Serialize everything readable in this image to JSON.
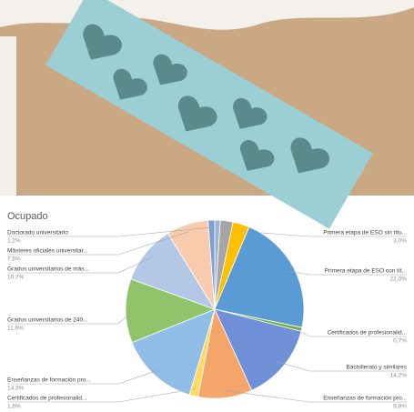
{
  "chart_data": {
    "type": "pie",
    "title": "Ocupado",
    "categories": [
      null,
      null,
      "Primera etapa de ESO sin títu...",
      "Primera etapa de ESO con tít...",
      "Certificados de profesionalid...",
      "Bachillerato y similares",
      "Enseñanzas de formación pro...",
      "Certificados de profesionalid...",
      "Enseñanzas de formación pro...",
      "Grados universitarios de 240...",
      "Grados universitarios de  más...",
      "Másteres oficiales universitar...",
      "Doctorado universitario"
    ],
    "values": [
      1.0,
      2.3,
      3.0,
      22.0,
      0.7,
      14.2,
      9.8,
      1.6,
      14.3,
      11.6,
      10.7,
      7.6,
      1.2
    ],
    "value_labels": [
      null,
      null,
      "3,0%",
      "22,0%",
      "0,7%",
      "14,2%",
      "9,8%",
      "1,6%",
      "14,3%",
      "11,6%",
      "10,7%",
      "7,6%",
      "1,2%"
    ],
    "colors": [
      "#9fb3d6",
      "#a5a5a5",
      "#ffc000",
      "#5b9bd5",
      "#70ad47",
      "#6f8fd6",
      "#f4a66a",
      "#ffd966",
      "#8fbde6",
      "#8fc46a",
      "#b4c7e7",
      "#f8cbad",
      "#7f9fd0"
    ]
  }
}
